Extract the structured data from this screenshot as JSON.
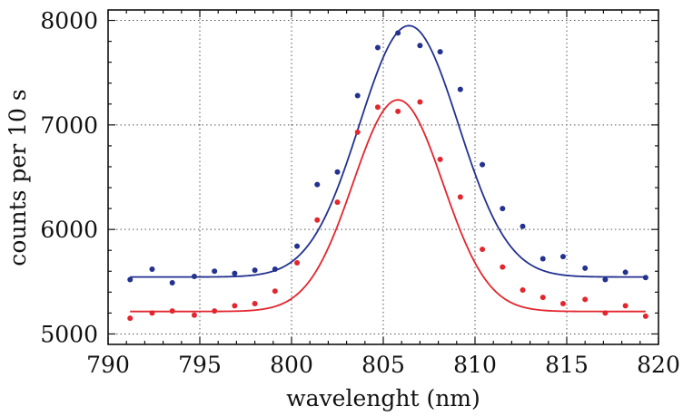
{
  "chart_data": {
    "type": "scatter",
    "xlabel": "wavelenght (nm)",
    "ylabel": "counts per 10 s",
    "xlim": [
      790,
      820
    ],
    "ylim": [
      4900,
      8100
    ],
    "xticks": [
      790,
      795,
      800,
      805,
      810,
      815,
      820
    ],
    "yticks": [
      5000,
      6000,
      7000,
      8000
    ],
    "grid": true,
    "series": [
      {
        "color": "#23318f",
        "points": {
          "x": [
            791.2,
            792.4,
            793.5,
            794.7,
            795.8,
            796.9,
            798.0,
            799.1,
            800.3,
            801.4,
            802.5,
            803.6,
            804.7,
            805.8,
            807.0,
            808.1,
            809.2,
            810.4,
            811.5,
            812.6,
            813.7,
            814.8,
            816.0,
            817.1,
            818.2,
            819.3
          ],
          "y": [
            5520,
            5620,
            5490,
            5550,
            5600,
            5580,
            5610,
            5620,
            5840,
            6430,
            6550,
            7280,
            7740,
            7880,
            7760,
            7700,
            7340,
            6620,
            6200,
            6030,
            5720,
            5740,
            5630,
            5520,
            5590,
            5540
          ]
        },
        "fit": {
          "baseline": 5545,
          "amplitude": 2405,
          "center": 806.4,
          "sigma": 2.7
        }
      },
      {
        "color": "#e3262e",
        "points": {
          "x": [
            791.2,
            792.4,
            793.5,
            794.7,
            795.8,
            796.9,
            798.0,
            799.1,
            800.3,
            801.4,
            802.5,
            803.6,
            804.7,
            805.8,
            807.0,
            808.1,
            809.2,
            810.4,
            811.5,
            812.6,
            813.7,
            814.8,
            816.0,
            817.1,
            818.2,
            819.3
          ],
          "y": [
            5150,
            5200,
            5220,
            5180,
            5220,
            5270,
            5290,
            5410,
            5680,
            6090,
            6260,
            6930,
            7170,
            7130,
            7220,
            6670,
            6310,
            5810,
            5640,
            5420,
            5350,
            5290,
            5330,
            5200,
            5270,
            5170
          ]
        },
        "fit": {
          "baseline": 5215,
          "amplitude": 2025,
          "center": 805.8,
          "sigma": 2.45
        }
      }
    ]
  }
}
